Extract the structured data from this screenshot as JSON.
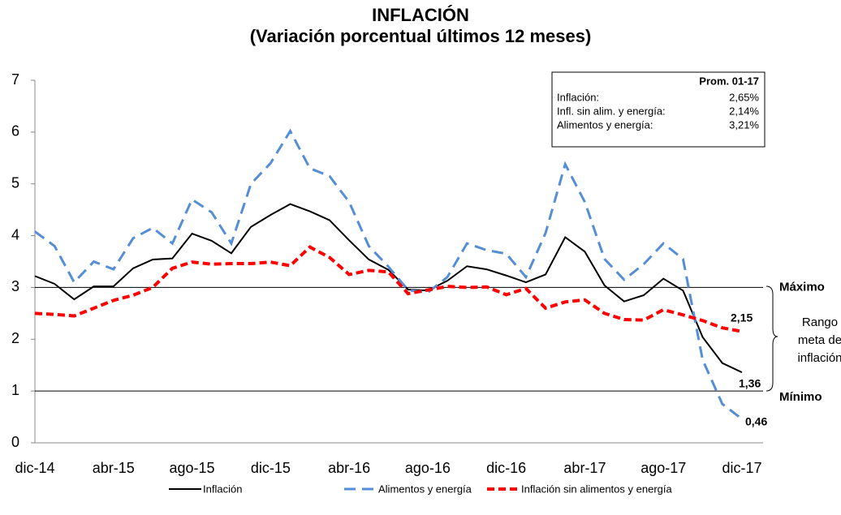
{
  "chart_data": {
    "type": "line",
    "title": "INFLACIÓN",
    "subtitle": "(Variación porcentual últimos 12 meses)",
    "categories": [
      "dic-14",
      null,
      null,
      null,
      "abr-15",
      null,
      null,
      null,
      "ago-15",
      null,
      null,
      null,
      "dic-15",
      null,
      null,
      null,
      "abr-16",
      null,
      null,
      null,
      "ago-16",
      null,
      null,
      null,
      "dic-16",
      null,
      null,
      null,
      "abr-17",
      null,
      null,
      null,
      "ago-17",
      null,
      null,
      null,
      "dic-17"
    ],
    "series": [
      {
        "name": "Inflación",
        "color": "#000000",
        "dash": "solid",
        "values": [
          3.22,
          3.07,
          2.77,
          3.02,
          3.02,
          3.37,
          3.54,
          3.56,
          4.04,
          3.9,
          3.66,
          4.17,
          4.4,
          4.61,
          4.47,
          4.3,
          3.91,
          3.54,
          3.34,
          2.96,
          2.94,
          3.13,
          3.41,
          3.35,
          3.23,
          3.1,
          3.25,
          3.97,
          3.69,
          3.04,
          2.73,
          2.85,
          3.17,
          2.94,
          2.04,
          1.54,
          1.36
        ],
        "value_labels": [
          null,
          null,
          null,
          null,
          null,
          null,
          null,
          null,
          null,
          null,
          null,
          null,
          null,
          null,
          null,
          null,
          null,
          null,
          null,
          null,
          null,
          null,
          null,
          null,
          null,
          null,
          null,
          null,
          null,
          null,
          null,
          null,
          null,
          null,
          null,
          null,
          "1,36"
        ]
      },
      {
        "name": "Alimentos y energía",
        "color": "#558ed5",
        "dash": "long",
        "values": [
          4.08,
          3.8,
          3.1,
          3.5,
          3.35,
          3.95,
          4.15,
          3.85,
          4.7,
          4.45,
          3.85,
          5.0,
          5.4,
          6.02,
          5.3,
          5.15,
          4.65,
          3.8,
          3.4,
          2.95,
          2.9,
          3.2,
          3.85,
          3.72,
          3.65,
          3.2,
          4.05,
          5.38,
          4.65,
          3.55,
          3.15,
          3.45,
          3.85,
          3.55,
          1.6,
          0.75,
          0.46
        ],
        "value_labels": [
          null,
          null,
          null,
          null,
          null,
          null,
          null,
          null,
          null,
          null,
          null,
          null,
          null,
          null,
          null,
          null,
          null,
          null,
          null,
          null,
          null,
          null,
          null,
          null,
          null,
          null,
          null,
          null,
          null,
          null,
          null,
          null,
          null,
          null,
          null,
          null,
          "0,46"
        ]
      },
      {
        "name": "Inflación sin alimentos y energía",
        "color": "#ff0000",
        "dash": "short",
        "values": [
          2.5,
          2.48,
          2.45,
          2.6,
          2.75,
          2.85,
          3.0,
          3.37,
          3.49,
          3.45,
          3.46,
          3.46,
          3.49,
          3.42,
          3.78,
          3.58,
          3.25,
          3.33,
          3.3,
          2.88,
          2.95,
          3.02,
          3.0,
          3.01,
          2.86,
          2.98,
          2.6,
          2.72,
          2.76,
          2.5,
          2.38,
          2.37,
          2.57,
          2.47,
          2.36,
          2.22,
          2.15
        ],
        "value_labels": [
          null,
          null,
          null,
          null,
          null,
          null,
          null,
          null,
          null,
          null,
          null,
          null,
          null,
          null,
          null,
          null,
          null,
          null,
          null,
          null,
          null,
          null,
          null,
          null,
          null,
          null,
          null,
          null,
          null,
          null,
          null,
          null,
          null,
          null,
          null,
          null,
          "2,15"
        ]
      }
    ],
    "ylim": [
      0,
      7
    ],
    "yticks": [
      0,
      1,
      2,
      3,
      4,
      5,
      6,
      7
    ],
    "grid": false,
    "reference_lines": [
      {
        "value": 3,
        "label": "Máximo"
      },
      {
        "value": 1,
        "label": "Mínimo"
      }
    ],
    "range_annotation": [
      "Rango",
      "meta de",
      "inflación"
    ],
    "info_box": {
      "title": "Prom. 01-17",
      "rows": [
        [
          "Inflación:",
          "2,65%"
        ],
        [
          "Infl. sin alim. y energía:",
          "2,14%"
        ],
        [
          "Alimentos y energía:",
          "3,21%"
        ]
      ]
    },
    "legend": "bottom"
  }
}
